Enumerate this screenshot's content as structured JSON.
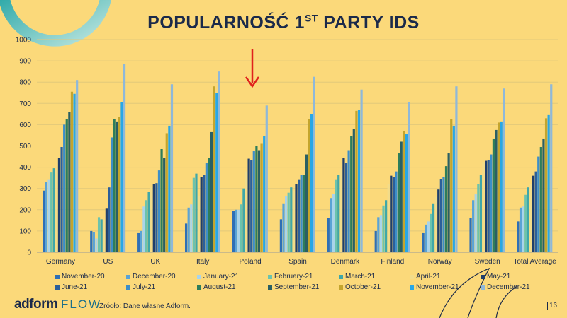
{
  "slide": {
    "title_main": "POPULARNOŚĆ 1",
    "title_sup": "ST",
    "title_end": " PARTY IDS",
    "source": "Źródło: Dane własne Adform.",
    "brand1": "adform",
    "brand2": "FLOW",
    "page_number": "16"
  },
  "colors": {
    "background": "#fbd97a",
    "title": "#1b2a4a",
    "arrow": "#e0211c",
    "series": [
      "#2f6fb5",
      "#5aa3d6",
      "#a9d4ea",
      "#6cc3ad",
      "#3fa7a8",
      "#f2dc8a",
      "#1f3f6b",
      "#2c5f9a",
      "#3c8ec8",
      "#2e7d5a",
      "#2a5f63",
      "#c4a52d",
      "#28a7e6",
      "#8fb8d9"
    ]
  },
  "chart_data": {
    "type": "bar",
    "ylim": [
      0,
      1000
    ],
    "yticks": [
      0,
      100,
      200,
      300,
      400,
      500,
      600,
      700,
      800,
      900,
      1000
    ],
    "categories": [
      "Germany",
      "US",
      "UK",
      "Italy",
      "Poland",
      "Spain",
      "Denmark",
      "Finland",
      "Norway",
      "Sweden",
      "Total Average"
    ],
    "series": [
      {
        "name": "November-20",
        "values": [
          290,
          100,
          90,
          135,
          195,
          155,
          160,
          100,
          90,
          160,
          145
        ]
      },
      {
        "name": "December-20",
        "values": [
          330,
          95,
          100,
          210,
          200,
          230,
          255,
          165,
          130,
          245,
          210
        ]
      },
      {
        "name": "January-21",
        "values": [
          340,
          65,
          215,
          225,
          200,
          265,
          275,
          175,
          145,
          275,
          215
        ]
      },
      {
        "name": "February-21",
        "values": [
          375,
          165,
          245,
          350,
          225,
          280,
          340,
          220,
          180,
          320,
          270
        ]
      },
      {
        "name": "March-21",
        "values": [
          395,
          155,
          285,
          370,
          300,
          305,
          365,
          245,
          230,
          365,
          305
        ]
      },
      {
        "name": "April-21",
        "values": [
          390,
          150,
          305,
          265,
          380,
          290,
          390,
          320,
          260,
          425,
          320
        ]
      },
      {
        "name": "May-21",
        "values": [
          445,
          205,
          320,
          355,
          440,
          320,
          445,
          360,
          295,
          430,
          360
        ]
      },
      {
        "name": "June-21",
        "values": [
          495,
          305,
          325,
          365,
          435,
          340,
          420,
          355,
          345,
          435,
          380
        ]
      },
      {
        "name": "July-21",
        "values": [
          600,
          540,
          385,
          420,
          475,
          365,
          480,
          380,
          355,
          460,
          450
        ]
      },
      {
        "name": "August-21",
        "values": [
          625,
          625,
          485,
          445,
          500,
          365,
          545,
          465,
          405,
          535,
          495
        ]
      },
      {
        "name": "September-21",
        "values": [
          660,
          615,
          445,
          565,
          480,
          460,
          580,
          520,
          465,
          575,
          535
        ]
      },
      {
        "name": "October-21",
        "values": [
          755,
          635,
          560,
          780,
          510,
          625,
          665,
          570,
          625,
          610,
          630
        ]
      },
      {
        "name": "November-21",
        "values": [
          745,
          705,
          595,
          750,
          545,
          650,
          670,
          555,
          595,
          615,
          645
        ]
      },
      {
        "name": "December-21",
        "values": [
          810,
          885,
          790,
          850,
          690,
          825,
          765,
          705,
          780,
          770,
          790
        ]
      }
    ]
  }
}
